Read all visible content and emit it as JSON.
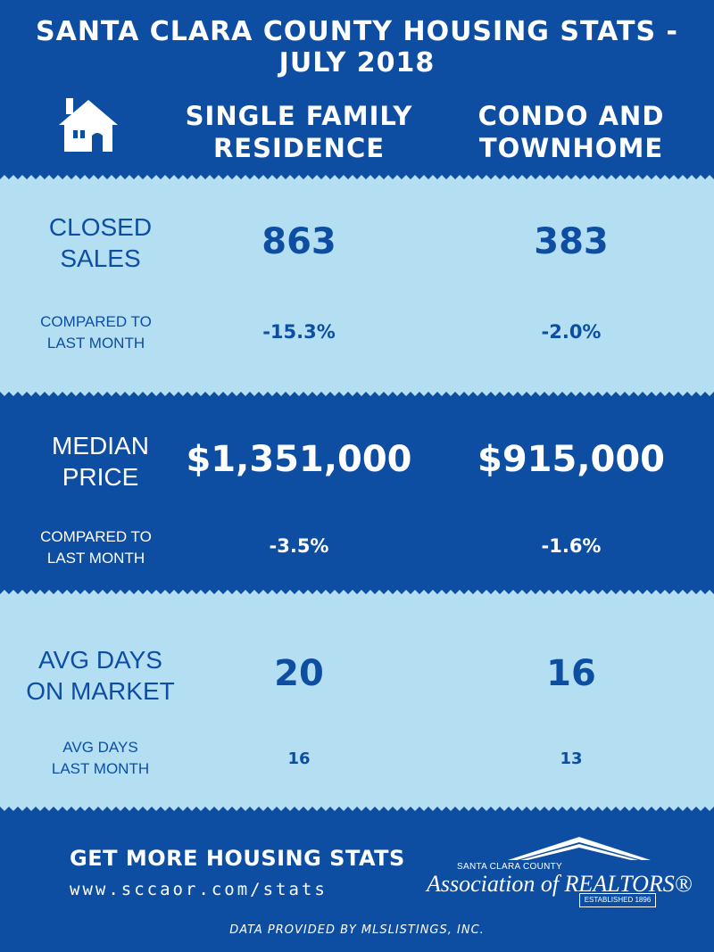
{
  "header": {
    "title": "SANTA CLARA COUNTY HOUSING STATS - JULY 2018",
    "icon": "house-icon",
    "col1": "SINGLE FAMILY\nRESIDENCE",
    "col1_line1": "SINGLE FAMILY",
    "col1_line2": "RESIDENCE",
    "col2_line1": "CONDO AND",
    "col2_line2": "TOWNHOME"
  },
  "rows": {
    "closed": {
      "label_line1": "CLOSED",
      "label_line2": "SALES",
      "sfr": "863",
      "condo": "383",
      "sub_line1": "COMPARED TO",
      "sub_line2": "LAST MONTH",
      "sfr_change": "-15.3%",
      "condo_change": "-2.0%"
    },
    "median": {
      "label_line1": "MEDIAN",
      "label_line2": "PRICE",
      "sfr": "$1,351,000",
      "condo": "$915,000",
      "sub_line1": "COMPARED TO",
      "sub_line2": "LAST MONTH",
      "sfr_change": "-3.5%",
      "condo_change": "-1.6%"
    },
    "dom": {
      "label_line1": "AVG DAYS",
      "label_line2": "ON MARKET",
      "sfr": "20",
      "condo": "16",
      "sub_line1": "AVG DAYS",
      "sub_line2": "LAST MONTH",
      "sfr_last": "16",
      "condo_last": "13"
    }
  },
  "footer": {
    "cta": "GET MORE HOUSING STATS",
    "url": "www.sccaor.com/stats",
    "logo_county": "SANTA CLARA COUNTY",
    "logo_name": "Association of REALTORS®",
    "logo_established": "ESTABLISHED 1896",
    "credit": "DATA PROVIDED BY MLSLISTINGS, INC."
  },
  "colors": {
    "dark_blue": "#0d4ea3",
    "light_blue": "#b4dff3",
    "white": "#ffffff"
  }
}
